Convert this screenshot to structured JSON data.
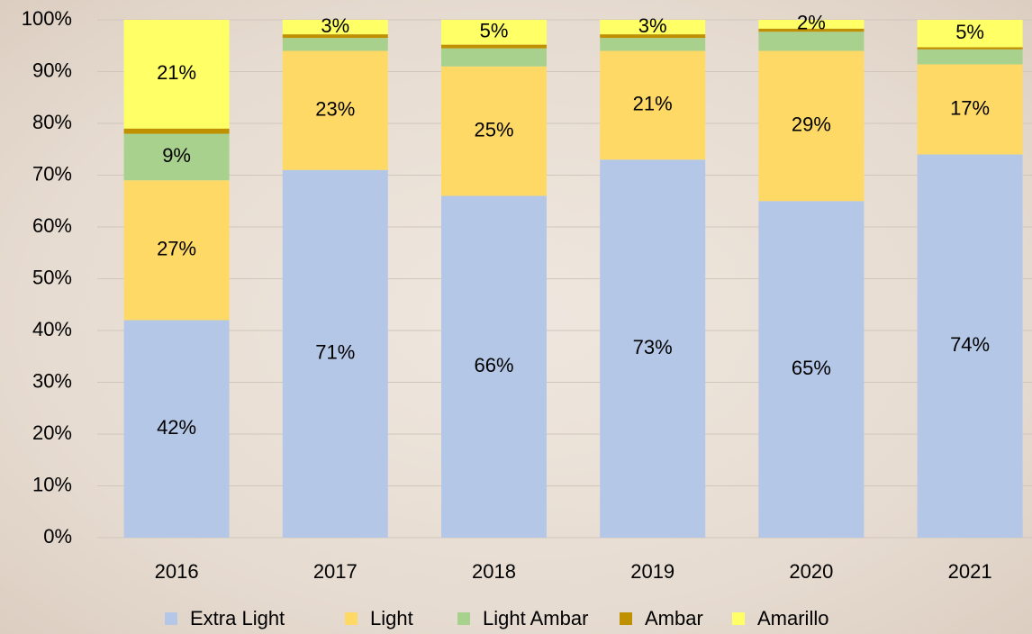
{
  "chart_data": {
    "type": "stacked_bar",
    "categories": [
      "2016",
      "2017",
      "2018",
      "2019",
      "2020",
      "2021"
    ],
    "series": [
      {
        "name": "Extra Light",
        "color": "#b4c7e7",
        "values": [
          42,
          71,
          66,
          73,
          65,
          74
        ],
        "value_labels": [
          "42%",
          "71%",
          "66%",
          "73%",
          "65%",
          "74%"
        ]
      },
      {
        "name": "Light",
        "color": "#ffd966",
        "values": [
          27,
          23,
          25,
          21,
          29,
          17.4
        ],
        "value_labels": [
          "27%",
          "23%",
          "25%",
          "21%",
          "29%",
          "17%"
        ]
      },
      {
        "name": "Light Ambar",
        "color": "#a9d18e",
        "values": [
          9,
          2.5,
          3.5,
          2.5,
          3.7,
          2.9
        ],
        "value_labels": [
          "9%",
          null,
          null,
          null,
          null,
          null
        ]
      },
      {
        "name": "Ambar",
        "color": "#bf9000",
        "values": [
          1,
          0.7,
          0.7,
          0.7,
          0.6,
          0.4
        ]
      },
      {
        "name": "Amarillo",
        "color": "#ffff66",
        "values": [
          21,
          2.8,
          4.8,
          2.8,
          1.7,
          5.3
        ],
        "value_labels": [
          "21%",
          "3%",
          "5%",
          "3%",
          "2%",
          "5%"
        ]
      }
    ],
    "ylim": [
      0,
      100
    ],
    "yticks": [
      {
        "value": 0,
        "label": "0%"
      },
      {
        "value": 10,
        "label": "10%"
      },
      {
        "value": 20,
        "label": "20%"
      },
      {
        "value": 30,
        "label": "30%"
      },
      {
        "value": 40,
        "label": "40%"
      },
      {
        "value": 50,
        "label": "50%"
      },
      {
        "value": 60,
        "label": "60%"
      },
      {
        "value": 70,
        "label": "70%"
      },
      {
        "value": 80,
        "label": "80%"
      },
      {
        "value": 90,
        "label": "90%"
      },
      {
        "value": 100,
        "label": "100%"
      }
    ],
    "grid": true,
    "legend": "bottom"
  }
}
